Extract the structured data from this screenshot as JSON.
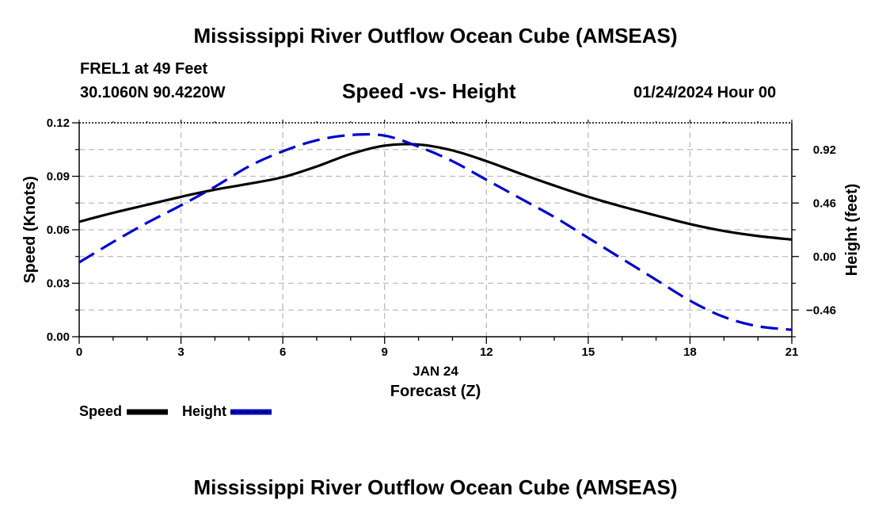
{
  "page_title": "Mississippi River Outflow Ocean Cube (AMSEAS)",
  "station": {
    "name_line": "FREL1 at 49 Feet",
    "coords_line": "30.1060N  90.4220W",
    "date_line": "01/24/2024 Hour 00"
  },
  "footer_title": "Mississippi River Outflow Ocean Cube (AMSEAS)",
  "chart_data": {
    "type": "line",
    "title": "Speed -vs- Height",
    "xlabel": "Forecast (Z)",
    "xdate_label": "JAN 24",
    "x_ticks": [
      0,
      3,
      6,
      9,
      12,
      15,
      18,
      21
    ],
    "xlim": [
      0,
      21
    ],
    "ylabel_left": "Speed (Knots)",
    "ylim_left": [
      0,
      0.12
    ],
    "y_ticks_left": [
      0.0,
      0.03,
      0.06,
      0.09,
      0.12
    ],
    "y_tick_labels_left": [
      "0.00",
      "0.03",
      "0.06",
      "0.09",
      "0.12"
    ],
    "ylabel_right": "Height (feet)",
    "ylim_right": [
      -0.69,
      1.15
    ],
    "y_ticks_right": [
      -0.46,
      0.0,
      0.46,
      0.92
    ],
    "y_tick_labels_right": [
      "−0.46",
      "0.00",
      "0.46",
      "0.92"
    ],
    "grid": true,
    "series": [
      {
        "name": "Speed",
        "axis": "left",
        "color": "#000000",
        "dash": "solid",
        "x": [
          0,
          1,
          2,
          3,
          4,
          5,
          6,
          7,
          8,
          9,
          10,
          11,
          12,
          13,
          14,
          15,
          16,
          17,
          18,
          19,
          20,
          21
        ],
        "values": [
          0.0645,
          0.0695,
          0.074,
          0.0785,
          0.0825,
          0.0858,
          0.0895,
          0.0955,
          0.1025,
          0.1072,
          0.1078,
          0.1045,
          0.0985,
          0.0915,
          0.0848,
          0.0785,
          0.073,
          0.068,
          0.0632,
          0.0593,
          0.0565,
          0.0545
        ]
      },
      {
        "name": "Height",
        "axis": "right",
        "color": "#0000cc",
        "dash": "dashed",
        "x": [
          0,
          1,
          2,
          3,
          4,
          5,
          6,
          7,
          8,
          9,
          10,
          11,
          12,
          13,
          14,
          15,
          16,
          17,
          18,
          19,
          20,
          21
        ],
        "values": [
          -0.05,
          0.125,
          0.29,
          0.44,
          0.6,
          0.775,
          0.905,
          1.0,
          1.045,
          1.04,
          0.945,
          0.82,
          0.66,
          0.5,
          0.34,
          0.16,
          -0.02,
          -0.2,
          -0.38,
          -0.52,
          -0.6,
          -0.63
        ]
      }
    ],
    "legend": [
      "Speed",
      "Height"
    ],
    "legend_placement": "bottom-left"
  }
}
